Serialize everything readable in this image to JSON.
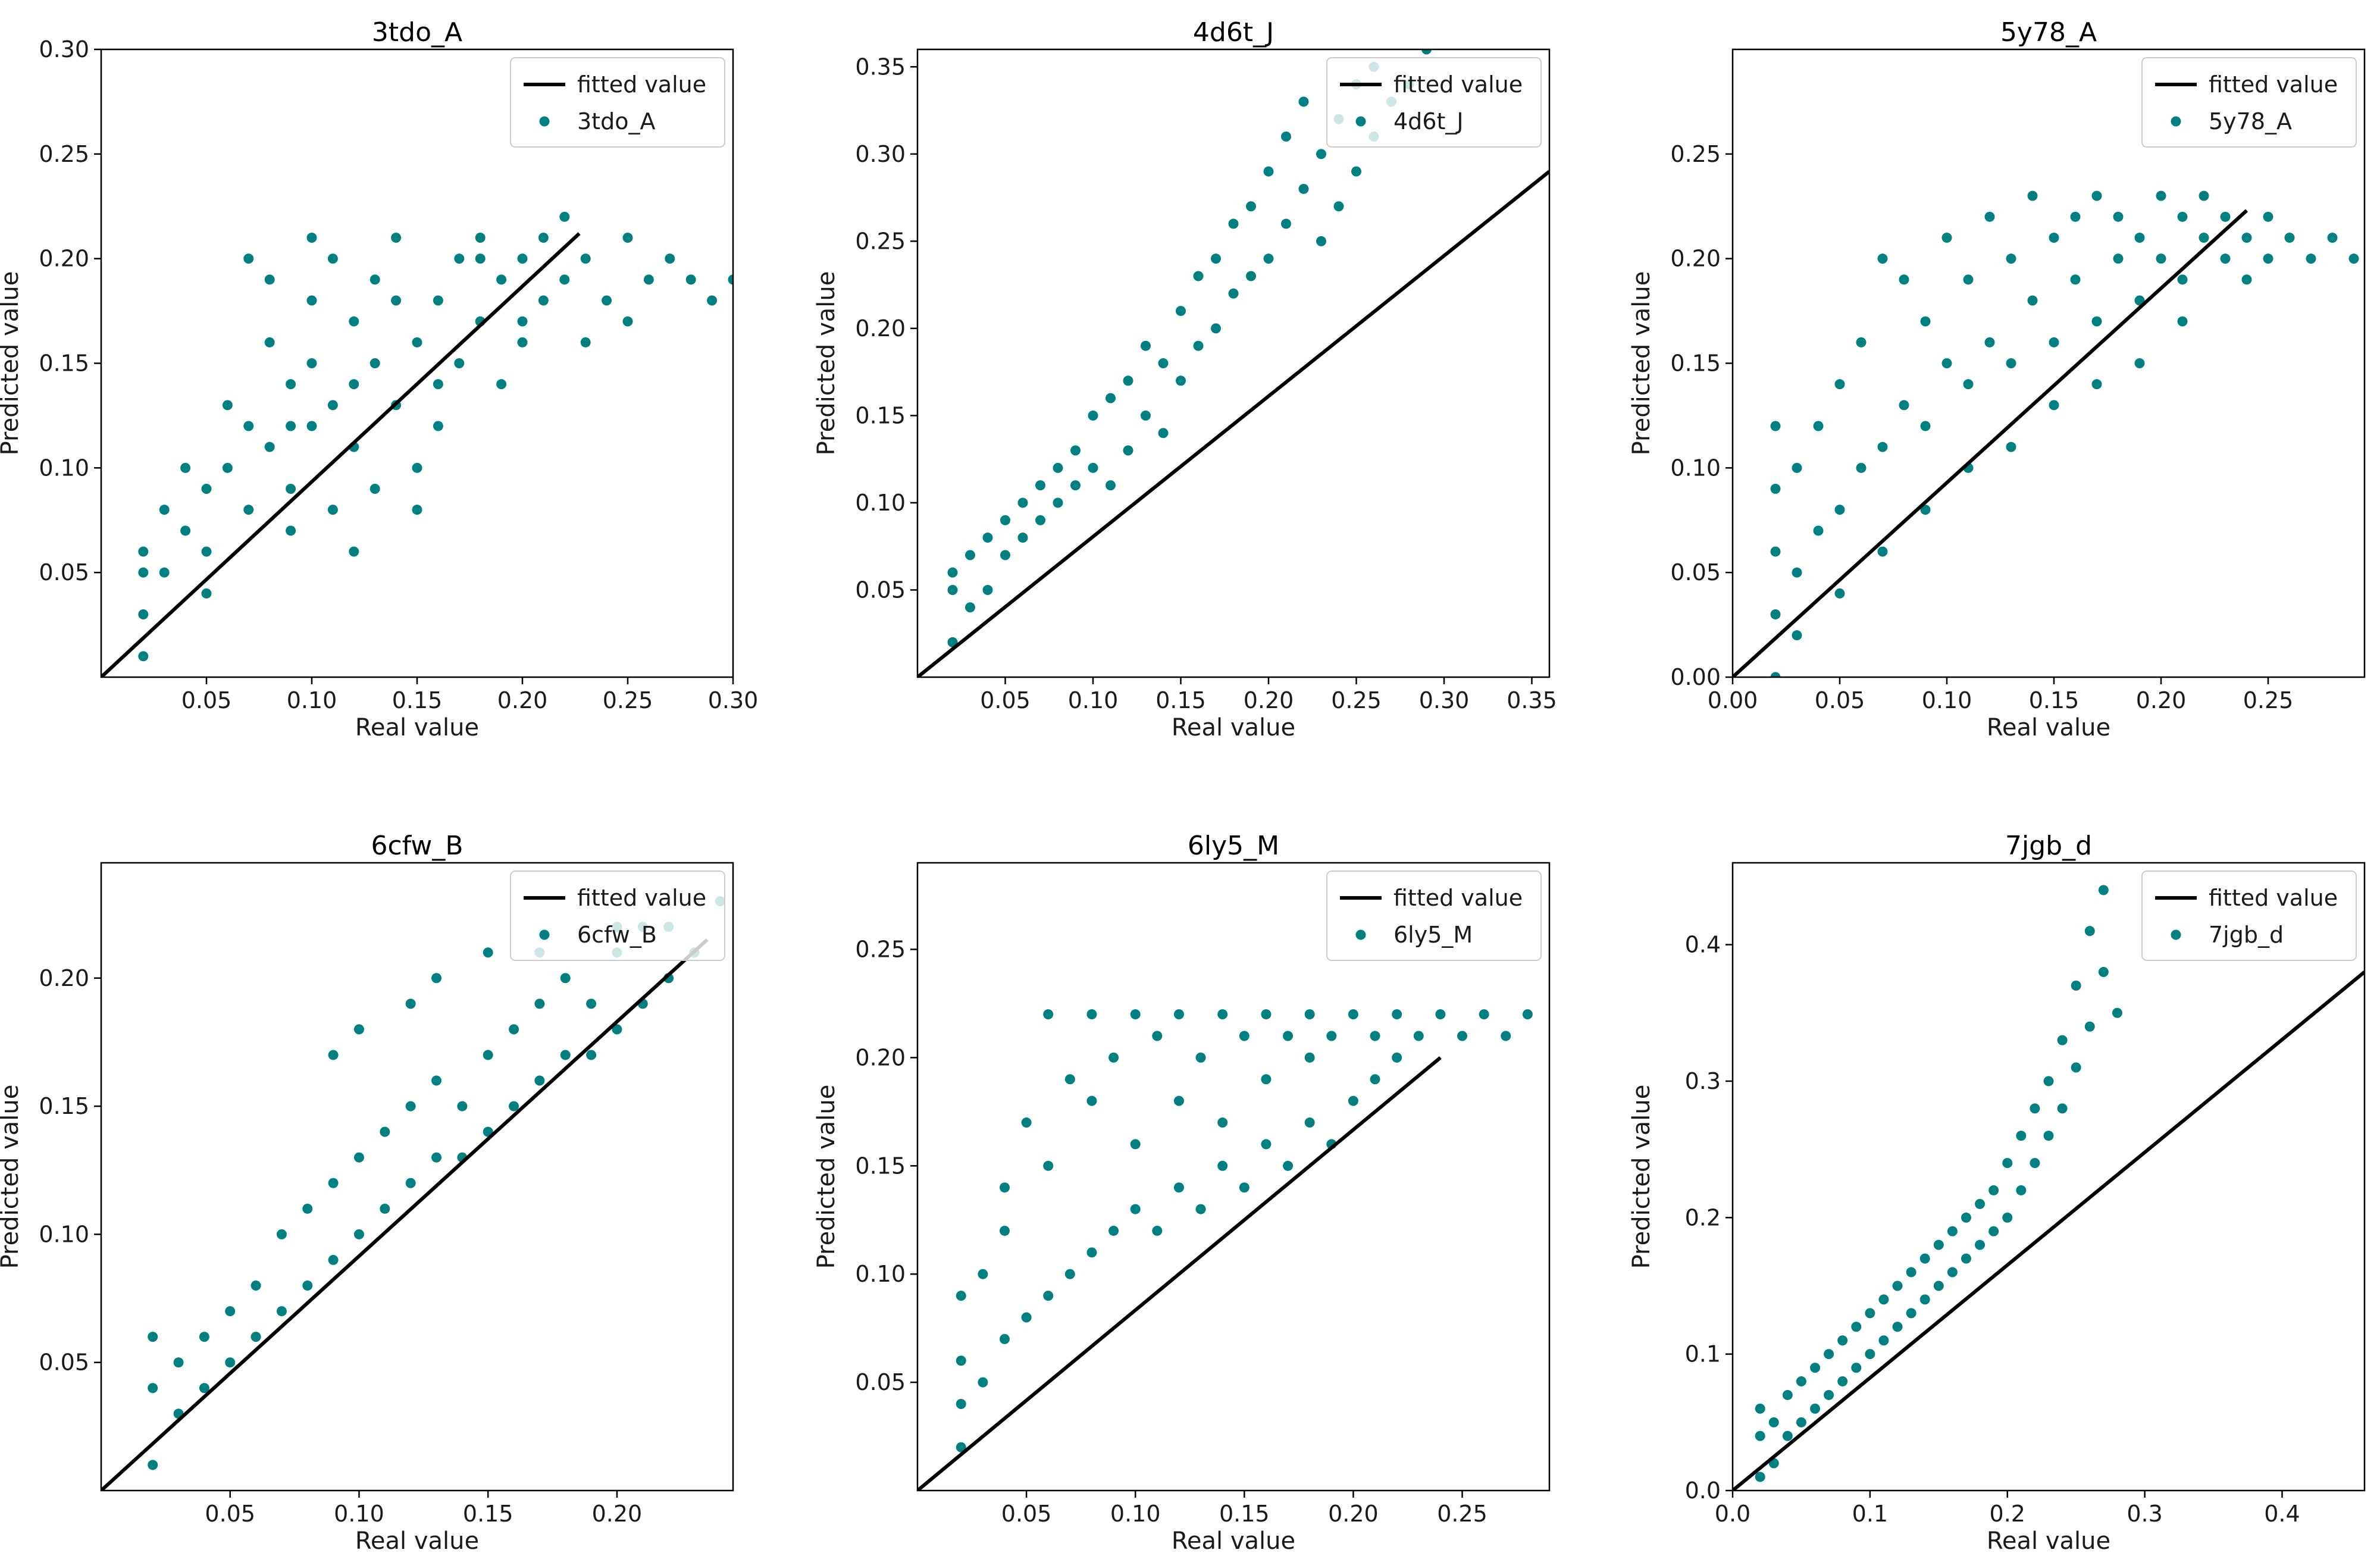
{
  "colors": {
    "point": "#008080",
    "fit_line": "#000000",
    "axes": "#000000",
    "legend_border": "#cccccc"
  },
  "legend_line_label": "fitted value",
  "chart_data": [
    {
      "type": "scatter",
      "title": "3tdo_A",
      "xlabel": "Real value",
      "ylabel": "Predicted value",
      "xlim": [
        0.0,
        0.3
      ],
      "ylim": [
        0.0,
        0.3
      ],
      "xticks": [
        0.05,
        0.1,
        0.15,
        0.2,
        0.25,
        0.3
      ],
      "yticks": [
        0.05,
        0.1,
        0.15,
        0.2,
        0.25,
        0.3
      ],
      "series": [
        {
          "name": "fitted value",
          "kind": "line",
          "x": [
            0.0,
            0.227
          ],
          "y": [
            0.0,
            0.212
          ]
        },
        {
          "name": "3tdo_A",
          "kind": "scatter",
          "x": [
            0.02,
            0.02,
            0.02,
            0.02,
            0.03,
            0.04,
            0.05,
            0.05,
            0.06,
            0.07,
            0.07,
            0.08,
            0.08,
            0.09,
            0.09,
            0.1,
            0.1,
            0.1,
            0.11,
            0.11,
            0.12,
            0.12,
            0.13,
            0.13,
            0.14,
            0.14,
            0.15,
            0.15,
            0.16,
            0.16,
            0.17,
            0.17,
            0.18,
            0.18,
            0.19,
            0.19,
            0.2,
            0.2,
            0.21,
            0.21,
            0.22,
            0.22,
            0.23,
            0.23,
            0.24,
            0.25,
            0.25,
            0.26,
            0.27,
            0.28,
            0.29,
            0.3,
            0.03,
            0.06,
            0.08,
            0.09,
            0.11,
            0.12,
            0.13,
            0.15,
            0.07,
            0.04,
            0.1,
            0.14,
            0.16,
            0.18,
            0.2,
            0.12,
            0.05,
            0.09
          ],
          "y": [
            0.01,
            0.03,
            0.05,
            0.06,
            0.05,
            0.07,
            0.06,
            0.09,
            0.1,
            0.08,
            0.12,
            0.11,
            0.19,
            0.14,
            0.09,
            0.15,
            0.18,
            0.12,
            0.13,
            0.2,
            0.17,
            0.11,
            0.15,
            0.19,
            0.13,
            0.21,
            0.16,
            0.1,
            0.18,
            0.12,
            0.2,
            0.15,
            0.17,
            0.21,
            0.19,
            0.14,
            0.2,
            0.16,
            0.18,
            0.21,
            0.19,
            0.22,
            0.2,
            0.16,
            0.18,
            0.21,
            0.17,
            0.19,
            0.2,
            0.19,
            0.18,
            0.19,
            0.08,
            0.13,
            0.16,
            0.07,
            0.08,
            0.06,
            0.09,
            0.08,
            0.2,
            0.1,
            0.21,
            0.18,
            0.14,
            0.2,
            0.17,
            0.14,
            0.04,
            0.12
          ]
        }
      ]
    },
    {
      "type": "scatter",
      "title": "4d6t_J",
      "xlabel": "Real value",
      "ylabel": "Predicted value",
      "xlim": [
        0.0,
        0.36
      ],
      "ylim": [
        0.0,
        0.36
      ],
      "xticks": [
        0.05,
        0.1,
        0.15,
        0.2,
        0.25,
        0.3,
        0.35
      ],
      "yticks": [
        0.05,
        0.1,
        0.15,
        0.2,
        0.25,
        0.3,
        0.35
      ],
      "series": [
        {
          "name": "fitted value",
          "kind": "line",
          "x": [
            0.0,
            0.36
          ],
          "y": [
            0.0,
            0.29
          ]
        },
        {
          "name": "4d6t_J",
          "kind": "scatter",
          "x": [
            0.02,
            0.02,
            0.02,
            0.03,
            0.03,
            0.04,
            0.04,
            0.05,
            0.05,
            0.06,
            0.06,
            0.07,
            0.07,
            0.08,
            0.08,
            0.09,
            0.09,
            0.1,
            0.1,
            0.11,
            0.11,
            0.12,
            0.12,
            0.13,
            0.13,
            0.14,
            0.14,
            0.15,
            0.15,
            0.16,
            0.16,
            0.17,
            0.17,
            0.18,
            0.18,
            0.19,
            0.19,
            0.2,
            0.2,
            0.21,
            0.21,
            0.22,
            0.22,
            0.23,
            0.23,
            0.24,
            0.24,
            0.25,
            0.25,
            0.26,
            0.26,
            0.27,
            0.28,
            0.29
          ],
          "y": [
            0.02,
            0.05,
            0.06,
            0.04,
            0.07,
            0.05,
            0.08,
            0.07,
            0.09,
            0.08,
            0.1,
            0.09,
            0.11,
            0.1,
            0.12,
            0.11,
            0.13,
            0.12,
            0.15,
            0.11,
            0.16,
            0.13,
            0.17,
            0.15,
            0.19,
            0.14,
            0.18,
            0.17,
            0.21,
            0.19,
            0.23,
            0.2,
            0.24,
            0.22,
            0.26,
            0.23,
            0.27,
            0.24,
            0.29,
            0.26,
            0.31,
            0.28,
            0.33,
            0.25,
            0.3,
            0.27,
            0.32,
            0.29,
            0.34,
            0.31,
            0.35,
            0.33,
            0.34,
            0.36
          ]
        }
      ]
    },
    {
      "type": "scatter",
      "title": "5y78_A",
      "xlabel": "Real value",
      "ylabel": "Predicted value",
      "xlim": [
        0.0,
        0.295
      ],
      "ylim": [
        0.0,
        0.3
      ],
      "xticks": [
        0.0,
        0.05,
        0.1,
        0.15,
        0.2,
        0.25
      ],
      "yticks": [
        0.0,
        0.05,
        0.1,
        0.15,
        0.2,
        0.25
      ],
      "series": [
        {
          "name": "fitted value",
          "kind": "line",
          "x": [
            0.0,
            0.24
          ],
          "y": [
            0.0,
            0.223
          ]
        },
        {
          "name": "5y78_A",
          "kind": "scatter",
          "x": [
            0.02,
            0.02,
            0.02,
            0.02,
            0.02,
            0.03,
            0.03,
            0.04,
            0.04,
            0.05,
            0.05,
            0.06,
            0.06,
            0.07,
            0.07,
            0.08,
            0.08,
            0.09,
            0.09,
            0.1,
            0.1,
            0.11,
            0.11,
            0.12,
            0.12,
            0.13,
            0.13,
            0.14,
            0.14,
            0.15,
            0.15,
            0.16,
            0.16,
            0.17,
            0.17,
            0.18,
            0.18,
            0.19,
            0.19,
            0.2,
            0.2,
            0.21,
            0.21,
            0.22,
            0.22,
            0.23,
            0.23,
            0.24,
            0.24,
            0.25,
            0.25,
            0.26,
            0.27,
            0.28,
            0.29,
            0.03,
            0.05,
            0.07,
            0.09,
            0.11,
            0.13,
            0.15,
            0.17,
            0.19,
            0.21
          ],
          "y": [
            0.0,
            0.03,
            0.06,
            0.09,
            0.12,
            0.05,
            0.1,
            0.07,
            0.12,
            0.08,
            0.14,
            0.1,
            0.16,
            0.11,
            0.2,
            0.13,
            0.19,
            0.12,
            0.17,
            0.15,
            0.21,
            0.14,
            0.19,
            0.16,
            0.22,
            0.15,
            0.2,
            0.18,
            0.23,
            0.16,
            0.21,
            0.19,
            0.22,
            0.17,
            0.23,
            0.2,
            0.22,
            0.18,
            0.21,
            0.2,
            0.23,
            0.19,
            0.22,
            0.21,
            0.23,
            0.2,
            0.22,
            0.21,
            0.19,
            0.22,
            0.2,
            0.21,
            0.2,
            0.21,
            0.2,
            0.02,
            0.04,
            0.06,
            0.08,
            0.1,
            0.11,
            0.13,
            0.14,
            0.15,
            0.17
          ]
        }
      ]
    },
    {
      "type": "scatter",
      "title": "6cfw_B",
      "xlabel": "Real value",
      "ylabel": "Predicted value",
      "xlim": [
        0.0,
        0.245
      ],
      "ylim": [
        0.0,
        0.245
      ],
      "xticks": [
        0.05,
        0.1,
        0.15,
        0.2
      ],
      "yticks": [
        0.05,
        0.1,
        0.15,
        0.2
      ],
      "series": [
        {
          "name": "fitted value",
          "kind": "line",
          "x": [
            0.0,
            0.235
          ],
          "y": [
            0.0,
            0.215
          ]
        },
        {
          "name": "6cfw_B",
          "kind": "scatter",
          "x": [
            0.02,
            0.02,
            0.02,
            0.03,
            0.03,
            0.04,
            0.04,
            0.05,
            0.05,
            0.06,
            0.06,
            0.07,
            0.07,
            0.08,
            0.08,
            0.09,
            0.09,
            0.1,
            0.1,
            0.11,
            0.11,
            0.12,
            0.12,
            0.13,
            0.13,
            0.14,
            0.14,
            0.15,
            0.15,
            0.16,
            0.16,
            0.17,
            0.17,
            0.18,
            0.18,
            0.19,
            0.19,
            0.2,
            0.2,
            0.21,
            0.21,
            0.22,
            0.22,
            0.23,
            0.24,
            0.09,
            0.1,
            0.12,
            0.13,
            0.15,
            0.17,
            0.2
          ],
          "y": [
            0.01,
            0.04,
            0.06,
            0.03,
            0.05,
            0.04,
            0.06,
            0.05,
            0.07,
            0.06,
            0.08,
            0.07,
            0.1,
            0.08,
            0.11,
            0.09,
            0.12,
            0.1,
            0.13,
            0.11,
            0.14,
            0.12,
            0.15,
            0.13,
            0.16,
            0.13,
            0.15,
            0.14,
            0.17,
            0.15,
            0.18,
            0.16,
            0.19,
            0.17,
            0.2,
            0.17,
            0.19,
            0.18,
            0.21,
            0.19,
            0.22,
            0.2,
            0.22,
            0.21,
            0.23,
            0.17,
            0.18,
            0.19,
            0.2,
            0.21,
            0.21,
            0.22
          ]
        }
      ]
    },
    {
      "type": "scatter",
      "title": "6ly5_M",
      "xlabel": "Real value",
      "ylabel": "Predicted value",
      "xlim": [
        0.0,
        0.29
      ],
      "ylim": [
        0.0,
        0.29
      ],
      "xticks": [
        0.05,
        0.1,
        0.15,
        0.2,
        0.25
      ],
      "yticks": [
        0.05,
        0.1,
        0.15,
        0.2,
        0.25
      ],
      "series": [
        {
          "name": "fitted value",
          "kind": "line",
          "x": [
            0.0,
            0.24
          ],
          "y": [
            0.0,
            0.2
          ]
        },
        {
          "name": "6ly5_M",
          "kind": "scatter",
          "x": [
            0.02,
            0.02,
            0.02,
            0.02,
            0.03,
            0.03,
            0.04,
            0.04,
            0.05,
            0.05,
            0.06,
            0.06,
            0.07,
            0.07,
            0.08,
            0.08,
            0.09,
            0.09,
            0.1,
            0.1,
            0.11,
            0.11,
            0.12,
            0.12,
            0.13,
            0.13,
            0.14,
            0.14,
            0.15,
            0.15,
            0.16,
            0.16,
            0.17,
            0.17,
            0.18,
            0.18,
            0.19,
            0.19,
            0.2,
            0.2,
            0.21,
            0.21,
            0.22,
            0.22,
            0.23,
            0.24,
            0.25,
            0.26,
            0.27,
            0.28,
            0.04,
            0.06,
            0.08,
            0.1,
            0.12,
            0.14,
            0.16,
            0.18
          ],
          "y": [
            0.02,
            0.04,
            0.06,
            0.09,
            0.05,
            0.1,
            0.07,
            0.14,
            0.08,
            0.17,
            0.09,
            0.22,
            0.1,
            0.19,
            0.11,
            0.22,
            0.12,
            0.2,
            0.13,
            0.22,
            0.12,
            0.21,
            0.14,
            0.22,
            0.13,
            0.2,
            0.15,
            0.22,
            0.14,
            0.21,
            0.16,
            0.22,
            0.15,
            0.21,
            0.17,
            0.22,
            0.16,
            0.21,
            0.18,
            0.22,
            0.19,
            0.21,
            0.2,
            0.22,
            0.21,
            0.22,
            0.21,
            0.22,
            0.21,
            0.22,
            0.12,
            0.15,
            0.18,
            0.16,
            0.18,
            0.17,
            0.19,
            0.2
          ]
        }
      ]
    },
    {
      "type": "scatter",
      "title": "7jgb_d",
      "xlabel": "Real value",
      "ylabel": "Predicted value",
      "xlim": [
        0.0,
        0.46
      ],
      "ylim": [
        0.0,
        0.46
      ],
      "xticks": [
        0.0,
        0.1,
        0.2,
        0.3,
        0.4
      ],
      "yticks": [
        0.0,
        0.1,
        0.2,
        0.3,
        0.4
      ],
      "series": [
        {
          "name": "fitted value",
          "kind": "line",
          "x": [
            0.0,
            0.46
          ],
          "y": [
            0.0,
            0.38
          ]
        },
        {
          "name": "7jgb_d",
          "kind": "scatter",
          "x": [
            0.02,
            0.02,
            0.02,
            0.03,
            0.03,
            0.04,
            0.04,
            0.05,
            0.05,
            0.06,
            0.06,
            0.07,
            0.07,
            0.08,
            0.08,
            0.09,
            0.09,
            0.1,
            0.1,
            0.11,
            0.11,
            0.12,
            0.12,
            0.13,
            0.13,
            0.14,
            0.14,
            0.15,
            0.15,
            0.16,
            0.16,
            0.17,
            0.17,
            0.18,
            0.18,
            0.19,
            0.19,
            0.2,
            0.2,
            0.21,
            0.21,
            0.22,
            0.22,
            0.23,
            0.23,
            0.24,
            0.24,
            0.25,
            0.25,
            0.26,
            0.26,
            0.27,
            0.27,
            0.28
          ],
          "y": [
            0.01,
            0.04,
            0.06,
            0.02,
            0.05,
            0.04,
            0.07,
            0.05,
            0.08,
            0.06,
            0.09,
            0.07,
            0.1,
            0.08,
            0.11,
            0.09,
            0.12,
            0.1,
            0.13,
            0.11,
            0.14,
            0.12,
            0.15,
            0.13,
            0.16,
            0.14,
            0.17,
            0.15,
            0.18,
            0.16,
            0.19,
            0.17,
            0.2,
            0.18,
            0.21,
            0.19,
            0.22,
            0.2,
            0.24,
            0.22,
            0.26,
            0.24,
            0.28,
            0.26,
            0.3,
            0.28,
            0.33,
            0.31,
            0.37,
            0.34,
            0.41,
            0.38,
            0.44,
            0.35
          ]
        }
      ]
    }
  ]
}
